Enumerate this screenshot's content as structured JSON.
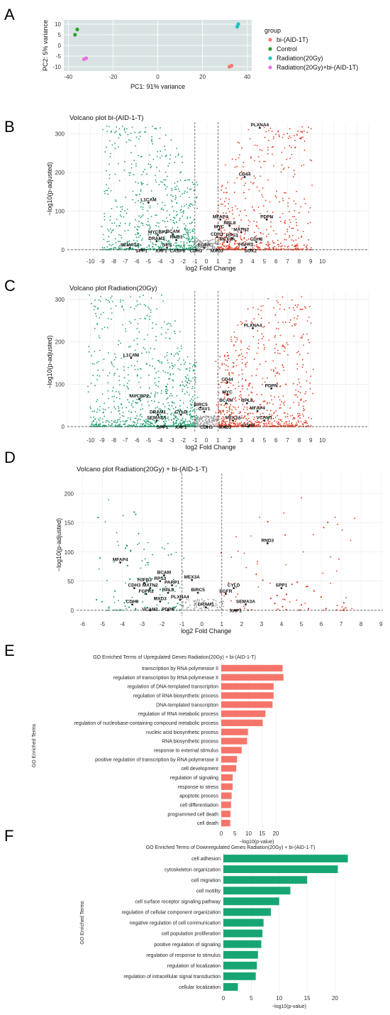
{
  "figure": {
    "panels": [
      {
        "letter": "A"
      },
      {
        "letter": "B"
      },
      {
        "letter": "C"
      },
      {
        "letter": "D"
      },
      {
        "letter": "E"
      },
      {
        "letter": "F"
      }
    ]
  },
  "chart_data": [
    {
      "id": "A",
      "type": "scatter",
      "title": "",
      "xlabel": "PC1: 91% variance",
      "ylabel": "PC2: 5% variance",
      "xlim": [
        -42,
        42
      ],
      "ylim": [
        -12,
        12
      ],
      "xticks": [
        -40,
        -20,
        0,
        20,
        40
      ],
      "yticks": [
        -10,
        -5,
        0,
        5,
        10
      ],
      "background": "#d9e3e3",
      "grid": true,
      "legend_title": "group",
      "legend_position": "right",
      "series": [
        {
          "name": "bi-(AID-1T)",
          "color": "#f8766d",
          "points": [
            [
              32,
              -10
            ],
            [
              33,
              -9.5
            ]
          ]
        },
        {
          "name": "Control",
          "color": "#2ca02c",
          "points": [
            [
              -36,
              7.5
            ],
            [
              -37,
              5
            ]
          ]
        },
        {
          "name": "Radiation(20Gy)",
          "color": "#17c5c5",
          "points": [
            [
              36,
              10
            ],
            [
              35.5,
              8.8
            ]
          ]
        },
        {
          "name": "Radiation(20Gy)+bi-(AID-1T)",
          "color": "#ee6ee4",
          "points": [
            [
              -33,
              -6.5
            ],
            [
              -32,
              -6
            ]
          ]
        }
      ]
    },
    {
      "id": "B",
      "type": "scatter",
      "title": "Volcano plot bi-(AID-1-T)",
      "xlabel": "log2 Fold Change",
      "ylabel": "−log10(p-adjusted)",
      "xlim": [
        -12,
        14
      ],
      "ylim": [
        -15,
        330
      ],
      "xticks": [
        -10,
        -9,
        -8,
        -7,
        -6,
        -5,
        -4,
        -3,
        -2,
        -1,
        0,
        1,
        2,
        3,
        4,
        5,
        6,
        7,
        8,
        9,
        10
      ],
      "yticks": [
        0,
        100,
        200,
        300
      ],
      "threshold_lines_x": [
        -1,
        1
      ],
      "down_color": "#1a9e6a",
      "up_color": "#e23a1f",
      "genes": [
        {
          "label": "PLXNA4",
          "x": 4.6,
          "y": 315
        },
        {
          "label": "CD44",
          "x": 3.3,
          "y": 188
        },
        {
          "label": "L1CAM",
          "x": -5.0,
          "y": 122
        },
        {
          "label": "MFAP4",
          "x": 1.2,
          "y": 78
        },
        {
          "label": "PDPN",
          "x": 5.2,
          "y": 78
        },
        {
          "label": "RBL8",
          "x": 2.0,
          "y": 62
        },
        {
          "label": "MYC",
          "x": 1.1,
          "y": 52
        },
        {
          "label": "MATN2",
          "x": 3.0,
          "y": 45
        },
        {
          "label": "MYCBP2",
          "x": -4.2,
          "y": 38
        },
        {
          "label": "BCAM",
          "x": -2.9,
          "y": 40
        },
        {
          "label": "CDH3",
          "x": 0.9,
          "y": 33
        },
        {
          "label": "RPS3",
          "x": 2.2,
          "y": 30
        },
        {
          "label": "DRAM1",
          "x": -4.3,
          "y": 22
        },
        {
          "label": "RND3",
          "x": -2.6,
          "y": 25
        },
        {
          "label": "MEX3A",
          "x": 1.8,
          "y": 20
        },
        {
          "label": "CDH8",
          "x": 4.3,
          "y": 20
        },
        {
          "label": "NES",
          "x": -3.4,
          "y": 5
        },
        {
          "label": "SEMA3A",
          "x": -6.6,
          "y": 5
        },
        {
          "label": "EGFR",
          "x": -0.2,
          "y": 5
        },
        {
          "label": "FGFR2",
          "x": 3.4,
          "y": 6
        },
        {
          "label": "SPP1",
          "x": -5.6,
          "y": -10
        },
        {
          "label": "CASP8",
          "x": -2.5,
          "y": -10
        },
        {
          "label": "XAF1",
          "x": -3.9,
          "y": -10
        },
        {
          "label": "CDH3",
          "x": -0.9,
          "y": -10
        },
        {
          "label": "MXD3",
          "x": 0.9,
          "y": -10
        },
        {
          "label": "SOX2",
          "x": 3.8,
          "y": -10
        }
      ]
    },
    {
      "id": "C",
      "type": "scatter",
      "title": "Volcano plot Radiation(20Gy)",
      "xlabel": "log2 Fold Change",
      "ylabel": "−log10(p-adjusted)",
      "xlim": [
        -12,
        14
      ],
      "ylim": [
        -15,
        320
      ],
      "xticks": [
        -10,
        -9,
        -8,
        -7,
        -6,
        -5,
        -4,
        -3,
        -2,
        -1,
        0,
        1,
        2,
        3,
        4,
        5,
        6,
        7,
        8,
        9,
        10
      ],
      "yticks": [
        0,
        100,
        200,
        300
      ],
      "threshold_lines_x": [
        -1,
        1
      ],
      "down_color": "#1a9e6a",
      "up_color": "#e23a1f",
      "genes": [
        {
          "label": "PLXNA4",
          "x": 4.0,
          "y": 232
        },
        {
          "label": "L1CAM",
          "x": -6.5,
          "y": 162
        },
        {
          "label": "CD44",
          "x": 1.8,
          "y": 105
        },
        {
          "label": "PDPN",
          "x": 5.6,
          "y": 90
        },
        {
          "label": "MYC",
          "x": 1.8,
          "y": 75
        },
        {
          "label": "MYCBP2",
          "x": -5.8,
          "y": 65
        },
        {
          "label": "BCAM",
          "x": 1.7,
          "y": 55
        },
        {
          "label": "RPL8",
          "x": 3.5,
          "y": 55
        },
        {
          "label": "BIRC5",
          "x": -0.5,
          "y": 45
        },
        {
          "label": "CAV1",
          "x": -0.2,
          "y": 35
        },
        {
          "label": "MFAP4",
          "x": 4.4,
          "y": 37
        },
        {
          "label": "DRAM1",
          "x": -4.2,
          "y": 28
        },
        {
          "label": "CYLD",
          "x": -2.2,
          "y": 28
        },
        {
          "label": "SEMA3A",
          "x": -4.3,
          "y": 14
        },
        {
          "label": "MEX3A",
          "x": 2.3,
          "y": 14
        },
        {
          "label": "VCAM1",
          "x": 5.0,
          "y": 14
        },
        {
          "label": "SPP1",
          "x": -3.8,
          "y": -8
        },
        {
          "label": "XAF1",
          "x": -2.2,
          "y": -8
        },
        {
          "label": "CDH3",
          "x": 0.0,
          "y": -8
        },
        {
          "label": "MXD3",
          "x": 1.6,
          "y": -8
        },
        {
          "label": "CDH8",
          "x": 3.6,
          "y": -4
        }
      ]
    },
    {
      "id": "D",
      "type": "scatter",
      "title": "Volcano plot Radiation(20Gy) + bi-(AID-1-T)",
      "xlabel": "log2 Fold Change",
      "ylabel": "−log10(p-adjusted)",
      "xlim": [
        -6.3,
        9.1
      ],
      "ylim": [
        -10,
        235
      ],
      "xticks": [
        -6,
        -5,
        -4,
        -3,
        -2,
        -1,
        0,
        1,
        2,
        3,
        4,
        5,
        6,
        7,
        8,
        9
      ],
      "yticks": [
        0,
        50,
        100,
        150,
        200
      ],
      "threshold_lines_x": [
        -1,
        1
      ],
      "down_color": "#1a9e6a",
      "up_color": "#e23a1f",
      "genes": [
        {
          "label": "RND3",
          "x": 3.3,
          "y": 115
        },
        {
          "label": "MFAP4",
          "x": -4.1,
          "y": 82
        },
        {
          "label": "BCAM",
          "x": -1.9,
          "y": 60
        },
        {
          "label": "MEX3A",
          "x": -0.5,
          "y": 52
        },
        {
          "label": "RPS3",
          "x": -2.1,
          "y": 50
        },
        {
          "label": "TGFB3",
          "x": -2.9,
          "y": 47
        },
        {
          "label": "PARP1",
          "x": -1.5,
          "y": 43
        },
        {
          "label": "CDH3",
          "x": -3.4,
          "y": 38
        },
        {
          "label": "MATN2",
          "x": -2.6,
          "y": 38
        },
        {
          "label": "CYLD",
          "x": 1.6,
          "y": 38
        },
        {
          "label": "SPP1",
          "x": 4.0,
          "y": 38
        },
        {
          "label": "RPL8",
          "x": -1.7,
          "y": 30
        },
        {
          "label": "BIRC5",
          "x": -0.2,
          "y": 30
        },
        {
          "label": "FGFR2",
          "x": -2.8,
          "y": 28
        },
        {
          "label": "EGFR",
          "x": 1.2,
          "y": 28
        },
        {
          "label": "MXD3",
          "x": -2.1,
          "y": 15
        },
        {
          "label": "PLXNA4",
          "x": -1.1,
          "y": 18
        },
        {
          "label": "CDH8",
          "x": -3.5,
          "y": 10
        },
        {
          "label": "SEMA3A",
          "x": 2.2,
          "y": 10
        },
        {
          "label": "DRAM1",
          "x": 0.2,
          "y": 5
        },
        {
          "label": "VCAM1",
          "x": -2.6,
          "y": -3
        },
        {
          "label": "PDPN",
          "x": -1.7,
          "y": -3
        },
        {
          "label": "XAF1",
          "x": 1.7,
          "y": -6
        }
      ]
    },
    {
      "id": "E",
      "type": "bar",
      "orientation": "horizontal",
      "title": "GO Enriched Terms of Upregulated Genes Radiation(20Gy) + bi-(AID-1-T)",
      "xlabel": "−log10(p-value)",
      "ylabel": "GO Enriched Terms",
      "xlim": [
        0,
        26
      ],
      "xticks": [
        0,
        5,
        10,
        15,
        20
      ],
      "color": "#f5756a",
      "categories": [
        "transcription by RNA polymerase II",
        "regulation of transcription by RNA polymerase II",
        "regulation of DNA-templated transcription",
        "regulation of RNA biosynthetic process",
        "DNA-templated transcription",
        "regulation of RNA metabolic process",
        "regulation of nucleobase-containing compound metabolic process",
        "nucleic acid biosynthetic process",
        "RNA biosynthetic process",
        "response to external stimulus",
        "positive regulation of transcription by RNA polymerase II",
        "cell development",
        "regulation of signaling",
        "response to stress",
        "apoptotic process",
        "cell differentiation",
        "programmed cell death",
        "cell death"
      ],
      "values": [
        22.5,
        22.8,
        19.2,
        19.2,
        18.8,
        16.2,
        15.2,
        9.8,
        9.5,
        7.5,
        5.8,
        5.5,
        4.2,
        4.2,
        3.8,
        3.6,
        3.4,
        3.3
      ]
    },
    {
      "id": "F",
      "type": "bar",
      "orientation": "horizontal",
      "title": "GO Enriched Terms of Downregulated Genes Radiation(20Gy) + bi-(AID-1-T)",
      "xlabel": "−log10(p-value)",
      "ylabel": "GO Enriched Terms",
      "xlim": [
        0,
        23.5
      ],
      "xticks": [
        0,
        5,
        10,
        15,
        20
      ],
      "color": "#17a673",
      "categories": [
        "cell adhesion",
        "cytoskeleton organization",
        "cell migration",
        "cell motility",
        "cell surface receptor signaling pathway",
        "regulation of cellular component organization",
        "negative regulation of cell communication",
        "cell population proliferation",
        "positive regulation of signaling",
        "regulation of response to stimulus",
        "regulation of localization",
        "regulation of intracellular signal transduction",
        "cellular localization"
      ],
      "values": [
        22.3,
        20.5,
        15.0,
        12.0,
        10.0,
        8.5,
        7.2,
        7.0,
        6.8,
        6.2,
        6.0,
        5.8,
        2.6
      ]
    }
  ]
}
